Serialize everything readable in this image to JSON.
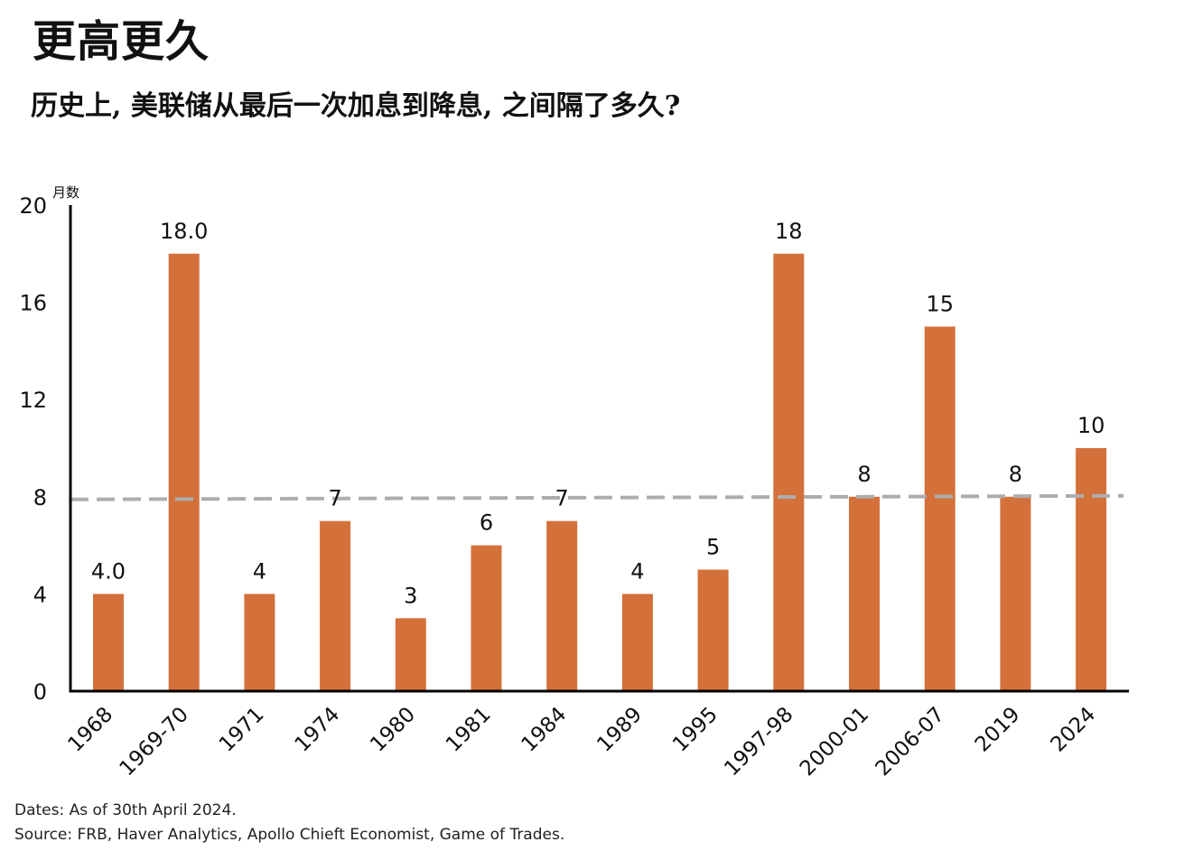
{
  "header": {
    "title": "更高更久",
    "subtitle": "历史上, 美联储从最后一次加息到降息, 之间隔了多久?"
  },
  "footer": {
    "note": "Dates: As of 30th April 2024.",
    "source": "Source: FRB, Haver Analytics, Apollo Chieft Economist, Game of Trades."
  },
  "colors": {
    "bar": "#D4703A",
    "reference_line": "#ADADAD",
    "axis": "#000000"
  },
  "chart_data": {
    "type": "bar",
    "ylabel": "月数",
    "ylim": [
      0,
      20
    ],
    "yticks": [
      0,
      4,
      8,
      12,
      16,
      20
    ],
    "categories": [
      "1968",
      "1969-70",
      "1971",
      "1974",
      "1980",
      "1981",
      "1984",
      "1989",
      "1995",
      "1997-98",
      "2000-01",
      "2006-07",
      "2019",
      "2024"
    ],
    "values": [
      4,
      18,
      4,
      7,
      3,
      6,
      7,
      4,
      5,
      18,
      8,
      15,
      8,
      10
    ],
    "data_labels": [
      "4.0",
      "18.0",
      "4",
      "7",
      "3",
      "6",
      "7",
      "4",
      "5",
      "18",
      "8",
      "15",
      "8",
      "10"
    ],
    "reference_line": {
      "value": 8,
      "style": "dashed"
    },
    "grid": false,
    "legend": "none"
  }
}
